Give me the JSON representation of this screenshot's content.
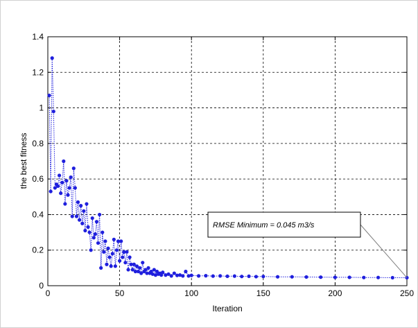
{
  "chart_data": {
    "type": "line",
    "xlabel": "Iteration",
    "ylabel": "the best fitness",
    "xlim": [
      0,
      250
    ],
    "ylim": [
      0,
      1.4
    ],
    "xticks": [
      0,
      50,
      100,
      150,
      200,
      250
    ],
    "yticks": [
      0,
      0.2,
      0.4,
      0.6,
      0.8,
      1,
      1.2,
      1.4
    ],
    "grid": true,
    "line_style": "dotted",
    "marker": "circle",
    "series_color": "#1f1fdd",
    "annotation": {
      "text": "RMSE Minimum = 0.045  m3/s",
      "points_to": [
        250,
        0.045
      ]
    },
    "points": [
      [
        1,
        1.07
      ],
      [
        2,
        0.53
      ],
      [
        3,
        1.28
      ],
      [
        4,
        0.98
      ],
      [
        5,
        0.55
      ],
      [
        6,
        0.57
      ],
      [
        7,
        0.56
      ],
      [
        8,
        0.62
      ],
      [
        9,
        0.52
      ],
      [
        10,
        0.58
      ],
      [
        11,
        0.7
      ],
      [
        12,
        0.46
      ],
      [
        13,
        0.59
      ],
      [
        14,
        0.51
      ],
      [
        15,
        0.55
      ],
      [
        16,
        0.61
      ],
      [
        17,
        0.39
      ],
      [
        18,
        0.66
      ],
      [
        19,
        0.55
      ],
      [
        20,
        0.39
      ],
      [
        21,
        0.47
      ],
      [
        22,
        0.37
      ],
      [
        23,
        0.45
      ],
      [
        24,
        0.35
      ],
      [
        25,
        0.42
      ],
      [
        26,
        0.31
      ],
      [
        27,
        0.46
      ],
      [
        28,
        0.33
      ],
      [
        29,
        0.3
      ],
      [
        30,
        0.2
      ],
      [
        31,
        0.38
      ],
      [
        32,
        0.27
      ],
      [
        33,
        0.29
      ],
      [
        34,
        0.36
      ],
      [
        35,
        0.24
      ],
      [
        36,
        0.4
      ],
      [
        37,
        0.1
      ],
      [
        38,
        0.3
      ],
      [
        39,
        0.19
      ],
      [
        40,
        0.25
      ],
      [
        41,
        0.12
      ],
      [
        42,
        0.21
      ],
      [
        43,
        0.16
      ],
      [
        44,
        0.11
      ],
      [
        45,
        0.18
      ],
      [
        46,
        0.26
      ],
      [
        47,
        0.11
      ],
      [
        48,
        0.2
      ],
      [
        49,
        0.25
      ],
      [
        50,
        0.14
      ],
      [
        51,
        0.25
      ],
      [
        52,
        0.16
      ],
      [
        53,
        0.19
      ],
      [
        54,
        0.13
      ],
      [
        55,
        0.19
      ],
      [
        56,
        0.09
      ],
      [
        57,
        0.16
      ],
      [
        58,
        0.12
      ],
      [
        59,
        0.09
      ],
      [
        60,
        0.12
      ],
      [
        61,
        0.08
      ],
      [
        62,
        0.11
      ],
      [
        63,
        0.08
      ],
      [
        64,
        0.1
      ],
      [
        65,
        0.07
      ],
      [
        66,
        0.13
      ],
      [
        67,
        0.08
      ],
      [
        68,
        0.09
      ],
      [
        69,
        0.07
      ],
      [
        70,
        0.1
      ],
      [
        71,
        0.07
      ],
      [
        72,
        0.08
      ],
      [
        73,
        0.065
      ],
      [
        74,
        0.09
      ],
      [
        75,
        0.06
      ],
      [
        76,
        0.08
      ],
      [
        77,
        0.065
      ],
      [
        78,
        0.07
      ],
      [
        79,
        0.06
      ],
      [
        80,
        0.075
      ],
      [
        82,
        0.06
      ],
      [
        84,
        0.065
      ],
      [
        86,
        0.055
      ],
      [
        88,
        0.07
      ],
      [
        90,
        0.058
      ],
      [
        92,
        0.06
      ],
      [
        94,
        0.055
      ],
      [
        96,
        0.08
      ],
      [
        98,
        0.055
      ],
      [
        100,
        0.058
      ],
      [
        105,
        0.055
      ],
      [
        110,
        0.056
      ],
      [
        115,
        0.054
      ],
      [
        120,
        0.055
      ],
      [
        125,
        0.053
      ],
      [
        130,
        0.054
      ],
      [
        135,
        0.052
      ],
      [
        140,
        0.053
      ],
      [
        145,
        0.051
      ],
      [
        150,
        0.052
      ],
      [
        160,
        0.05
      ],
      [
        170,
        0.05
      ],
      [
        180,
        0.049
      ],
      [
        190,
        0.048
      ],
      [
        200,
        0.047
      ],
      [
        210,
        0.047
      ],
      [
        220,
        0.046
      ],
      [
        230,
        0.046
      ],
      [
        240,
        0.045
      ],
      [
        250,
        0.045
      ]
    ]
  }
}
